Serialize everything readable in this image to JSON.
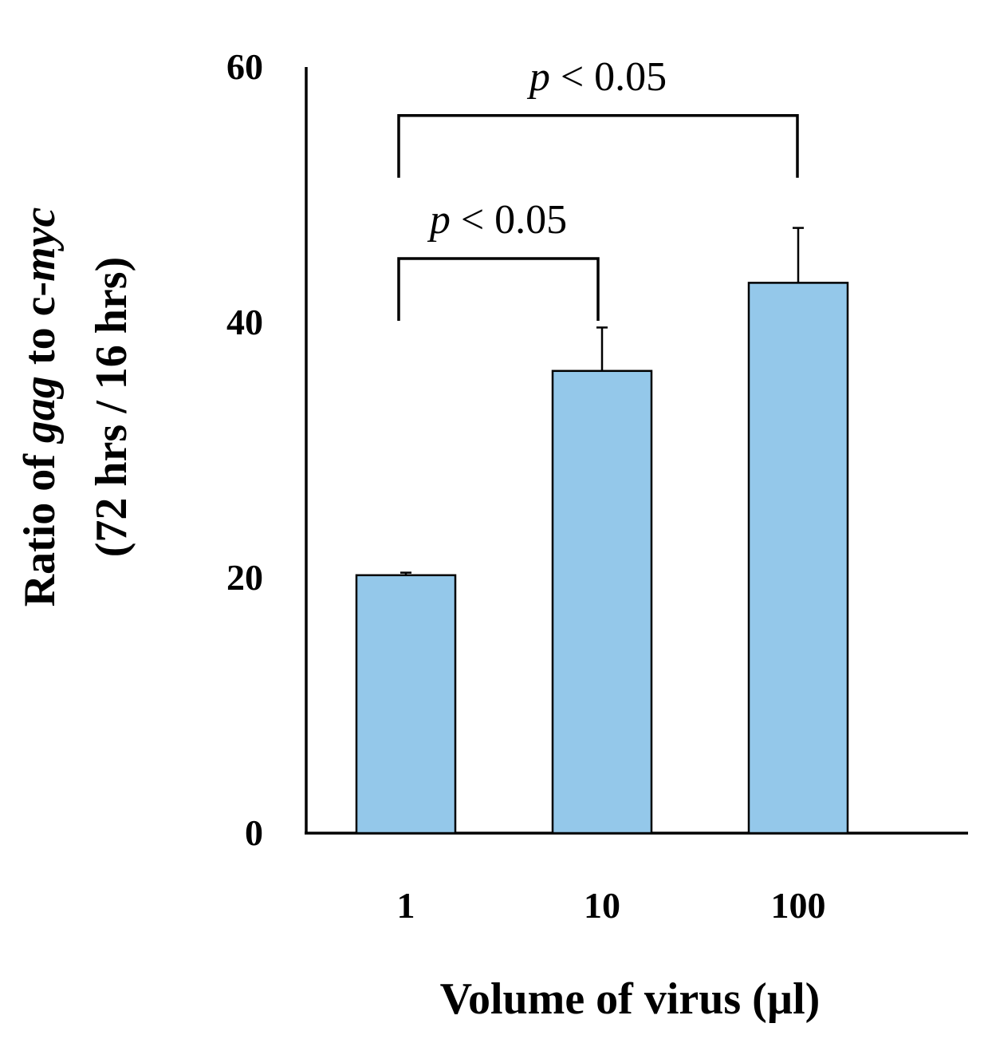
{
  "chart_data": {
    "type": "bar",
    "categories": [
      "1",
      "10",
      "100"
    ],
    "values": [
      20.2,
      36.2,
      43.1
    ],
    "errors": [
      0.2,
      3.4,
      4.3
    ],
    "ylim": [
      0,
      60
    ],
    "yticks": [
      0,
      20,
      40,
      60
    ],
    "ylabel": {
      "line1": {
        "pre": "Ratio of ",
        "em1": "gag",
        "mid": " to c-",
        "em2": "myc"
      },
      "line2": "(72 hrs / 16 hrs)"
    },
    "xlabel": "Volume of virus (µl)",
    "bar_color": "#94c8ea",
    "significance": [
      {
        "from": 0,
        "to": 2,
        "p_symbol": "p",
        "p_text": " < 0.05",
        "y_value": 56.2
      },
      {
        "from": 0,
        "to": 1,
        "p_symbol": "p",
        "p_text": " < 0.05",
        "y_value": 45.0
      }
    ]
  }
}
